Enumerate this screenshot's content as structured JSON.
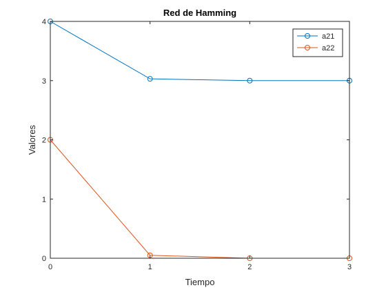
{
  "chart_data": {
    "type": "line",
    "title": "Red de Hamming",
    "xlabel": "Tiempo",
    "ylabel": "Valores",
    "x": [
      0,
      1,
      2,
      3
    ],
    "xlim": [
      0,
      3
    ],
    "ylim": [
      0,
      4
    ],
    "xticks": [
      "0",
      "1",
      "2",
      "3"
    ],
    "yticks": [
      "0",
      "1",
      "2",
      "3",
      "4"
    ],
    "grid": false,
    "legend_position": "top-right",
    "series": [
      {
        "name": "a21",
        "values": [
          4,
          3.03,
          3.0,
          3.0
        ],
        "color": "#0072BD",
        "marker": "circle"
      },
      {
        "name": "a22",
        "values": [
          2,
          0.05,
          0.0,
          0.0
        ],
        "color": "#D95319",
        "marker": "circle"
      }
    ]
  }
}
